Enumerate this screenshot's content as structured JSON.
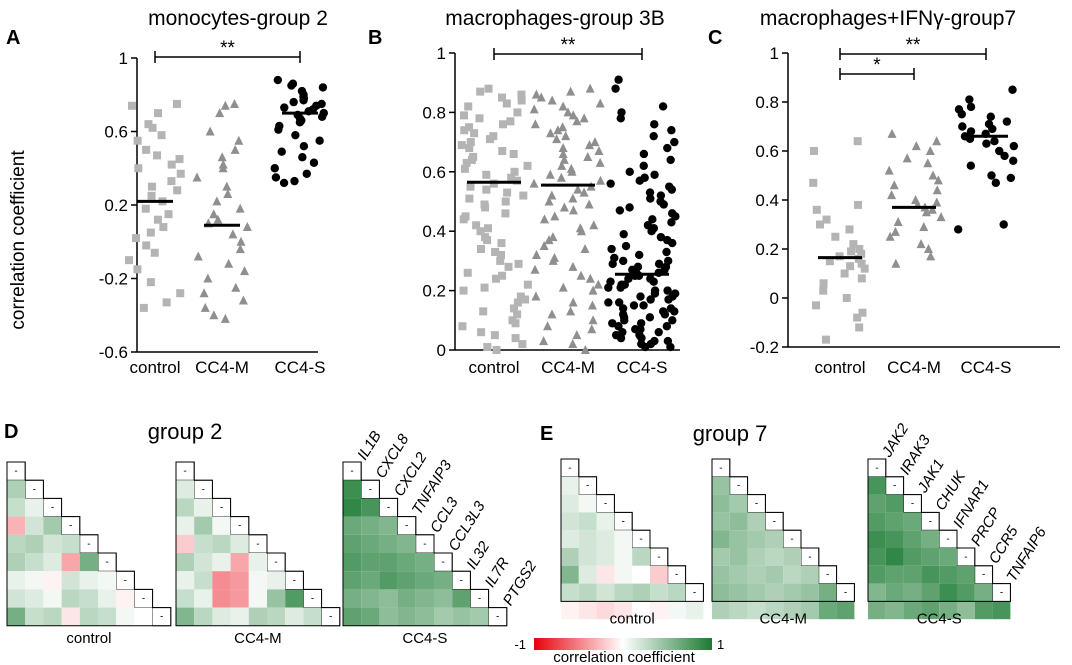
{
  "colors": {
    "control": "#b4b4b4",
    "cc4m": "#8f8f8f",
    "cc4s": "#000000",
    "pos": "#1a7a32",
    "neg": "#e8000d"
  },
  "chart_data": [
    {
      "type": "scatter",
      "panel": "A",
      "title": "monocytes-group 2",
      "xlabel": "",
      "ylabel": "correlation coefficient",
      "categories": [
        "control",
        "CC4-M",
        "CC4-S"
      ],
      "ylim": [
        -0.6,
        1
      ],
      "yticks": [
        -0.6,
        -0.2,
        0.2,
        0.6,
        1
      ],
      "ytick_labels": [
        "-0.6",
        "-0.2",
        "0.2",
        "0.6",
        "1"
      ],
      "medians": [
        0.22,
        0.09,
        0.7
      ],
      "significance": [
        {
          "from": 0,
          "to": 2,
          "label": "**"
        }
      ],
      "series": [
        {
          "name": "control",
          "marker": "square",
          "values": [
            0.75,
            0.74,
            0.7,
            0.64,
            0.62,
            0.58,
            0.55,
            0.5,
            0.47,
            0.45,
            0.42,
            0.4,
            0.37,
            0.33,
            0.3,
            0.28,
            0.25,
            0.22,
            0.18,
            0.15,
            0.12,
            0.08,
            0.05,
            0.02,
            -0.02,
            -0.06,
            -0.1,
            -0.15,
            -0.22,
            -0.28,
            -0.33,
            -0.36
          ]
        },
        {
          "name": "CC4-M",
          "marker": "triangle",
          "values": [
            0.75,
            0.74,
            0.7,
            0.6,
            0.55,
            0.5,
            0.46,
            0.42,
            0.4,
            0.35,
            0.3,
            0.26,
            0.22,
            0.18,
            0.15,
            0.12,
            0.1,
            0.08,
            0.04,
            0.0,
            -0.04,
            -0.08,
            -0.12,
            -0.16,
            -0.2,
            -0.25,
            -0.28,
            -0.32,
            -0.36,
            -0.4,
            -0.42
          ]
        },
        {
          "name": "CC4-S",
          "marker": "circle",
          "values": [
            0.88,
            0.86,
            0.85,
            0.84,
            0.82,
            0.8,
            0.79,
            0.78,
            0.77,
            0.76,
            0.75,
            0.74,
            0.73,
            0.72,
            0.71,
            0.7,
            0.69,
            0.68,
            0.67,
            0.66,
            0.65,
            0.63,
            0.61,
            0.58,
            0.55,
            0.52,
            0.49,
            0.46,
            0.43,
            0.4,
            0.37,
            0.35,
            0.33,
            0.32
          ]
        }
      ]
    },
    {
      "type": "scatter",
      "panel": "B",
      "title": "macrophages-group 3B",
      "xlabel": "",
      "ylabel": "",
      "categories": [
        "control",
        "CC4-M",
        "CC4-S"
      ],
      "ylim": [
        0,
        1
      ],
      "yticks": [
        0,
        0.2,
        0.4,
        0.6,
        0.8,
        1
      ],
      "ytick_labels": [
        "0",
        "0.2",
        "0.4",
        "0.6",
        "0.8",
        "1"
      ],
      "medians": [
        0.565,
        0.555,
        0.255
      ],
      "significance": [
        {
          "from": 0,
          "to": 2,
          "label": "**"
        }
      ],
      "series": [
        {
          "name": "control",
          "marker": "square",
          "values": [
            0.88,
            0.87,
            0.86,
            0.85,
            0.84,
            0.83,
            0.82,
            0.8,
            0.79,
            0.78,
            0.77,
            0.76,
            0.75,
            0.74,
            0.73,
            0.72,
            0.71,
            0.7,
            0.69,
            0.68,
            0.67,
            0.66,
            0.65,
            0.64,
            0.63,
            0.62,
            0.61,
            0.6,
            0.59,
            0.58,
            0.57,
            0.56,
            0.55,
            0.54,
            0.53,
            0.52,
            0.51,
            0.5,
            0.49,
            0.48,
            0.46,
            0.45,
            0.44,
            0.42,
            0.41,
            0.4,
            0.38,
            0.37,
            0.36,
            0.34,
            0.33,
            0.32,
            0.3,
            0.29,
            0.28,
            0.26,
            0.25,
            0.24,
            0.22,
            0.21,
            0.2,
            0.18,
            0.17,
            0.16,
            0.14,
            0.13,
            0.12,
            0.1,
            0.09,
            0.08,
            0.06,
            0.05,
            0.04,
            0.02,
            0.01,
            0.0
          ]
        },
        {
          "name": "CC4-M",
          "marker": "triangle",
          "values": [
            0.88,
            0.87,
            0.86,
            0.85,
            0.84,
            0.83,
            0.82,
            0.81,
            0.8,
            0.79,
            0.78,
            0.77,
            0.76,
            0.75,
            0.74,
            0.73,
            0.72,
            0.71,
            0.7,
            0.69,
            0.68,
            0.67,
            0.66,
            0.65,
            0.64,
            0.63,
            0.62,
            0.61,
            0.6,
            0.59,
            0.58,
            0.57,
            0.56,
            0.55,
            0.54,
            0.53,
            0.52,
            0.51,
            0.5,
            0.49,
            0.48,
            0.47,
            0.45,
            0.44,
            0.42,
            0.41,
            0.4,
            0.38,
            0.37,
            0.35,
            0.34,
            0.32,
            0.31,
            0.3,
            0.28,
            0.27,
            0.25,
            0.24,
            0.22,
            0.21,
            0.2,
            0.18,
            0.16,
            0.15,
            0.13,
            0.12,
            0.1,
            0.08,
            0.07,
            0.05,
            0.03,
            0.02,
            0.0
          ]
        },
        {
          "name": "CC4-S",
          "marker": "circle",
          "values": [
            0.91,
            0.88,
            0.82,
            0.8,
            0.78,
            0.76,
            0.74,
            0.72,
            0.7,
            0.68,
            0.66,
            0.64,
            0.62,
            0.6,
            0.59,
            0.58,
            0.57,
            0.56,
            0.55,
            0.54,
            0.53,
            0.52,
            0.51,
            0.5,
            0.49,
            0.48,
            0.47,
            0.46,
            0.45,
            0.44,
            0.43,
            0.42,
            0.41,
            0.4,
            0.39,
            0.38,
            0.37,
            0.36,
            0.35,
            0.34,
            0.33,
            0.32,
            0.31,
            0.3,
            0.3,
            0.29,
            0.29,
            0.28,
            0.28,
            0.27,
            0.27,
            0.26,
            0.26,
            0.25,
            0.25,
            0.24,
            0.24,
            0.23,
            0.23,
            0.22,
            0.22,
            0.21,
            0.21,
            0.2,
            0.2,
            0.19,
            0.19,
            0.18,
            0.18,
            0.17,
            0.17,
            0.16,
            0.16,
            0.15,
            0.15,
            0.14,
            0.14,
            0.13,
            0.13,
            0.12,
            0.12,
            0.11,
            0.11,
            0.1,
            0.1,
            0.09,
            0.09,
            0.08,
            0.08,
            0.07,
            0.07,
            0.06,
            0.06,
            0.05,
            0.05,
            0.04,
            0.04,
            0.03,
            0.03,
            0.02,
            0.02,
            0.01,
            0.01
          ]
        }
      ]
    },
    {
      "type": "scatter",
      "panel": "C",
      "title": "macrophages+IFNγ-group7",
      "xlabel": "",
      "ylabel": "",
      "categories": [
        "control",
        "CC4-M",
        "CC4-S"
      ],
      "ylim": [
        -0.2,
        1
      ],
      "yticks": [
        -0.2,
        0,
        0.2,
        0.4,
        0.6,
        0.8,
        1
      ],
      "ytick_labels": [
        "-0.2",
        "0",
        "0.2",
        "0.4",
        "0.6",
        "0.8",
        "1"
      ],
      "medians": [
        0.165,
        0.37,
        0.66
      ],
      "significance": [
        {
          "from": 0,
          "to": 1,
          "label": "*"
        },
        {
          "from": 0,
          "to": 2,
          "label": "**"
        }
      ],
      "series": [
        {
          "name": "control",
          "marker": "square",
          "values": [
            0.64,
            0.6,
            0.47,
            0.38,
            0.36,
            0.32,
            0.3,
            0.28,
            0.25,
            0.22,
            0.2,
            0.19,
            0.18,
            0.17,
            0.16,
            0.15,
            0.14,
            0.13,
            0.12,
            0.1,
            0.08,
            0.06,
            0.03,
            0.0,
            -0.03,
            -0.06,
            -0.08,
            -0.12,
            -0.17
          ]
        },
        {
          "name": "CC4-M",
          "marker": "triangle",
          "values": [
            0.67,
            0.64,
            0.62,
            0.6,
            0.57,
            0.55,
            0.52,
            0.5,
            0.48,
            0.46,
            0.44,
            0.42,
            0.4,
            0.39,
            0.38,
            0.37,
            0.36,
            0.35,
            0.33,
            0.31,
            0.29,
            0.27,
            0.25,
            0.22,
            0.2,
            0.17,
            0.14
          ]
        },
        {
          "name": "CC4-S",
          "marker": "circle",
          "values": [
            0.85,
            0.81,
            0.78,
            0.77,
            0.75,
            0.74,
            0.72,
            0.71,
            0.7,
            0.69,
            0.68,
            0.67,
            0.66,
            0.65,
            0.64,
            0.63,
            0.62,
            0.6,
            0.58,
            0.56,
            0.54,
            0.5,
            0.49,
            0.47,
            0.3,
            0.28
          ]
        }
      ]
    },
    {
      "type": "heatmap",
      "panel": "D",
      "title": "group 2",
      "genes": [
        "IL1B",
        "CXCL8",
        "CXCL2",
        "TNFAIP3",
        "CCL3",
        "CCL3L3",
        "IL32",
        "IL7R",
        "PTGS2"
      ],
      "diag_label": "-",
      "matrices": [
        {
          "label": "control",
          "values": [
            [
              0.35
            ],
            [
              0.25,
              0.1
            ],
            [
              -0.3,
              0.2,
              0.4
            ],
            [
              0.3,
              0.35,
              0.2,
              0.25
            ],
            [
              0.35,
              0.25,
              0.15,
              -0.35,
              0.6
            ],
            [
              0.1,
              0.05,
              -0.05,
              0.2,
              0.1,
              0.05
            ],
            [
              0.2,
              0.15,
              0.05,
              0.3,
              0.25,
              0.1,
              -0.05
            ],
            [
              0.6,
              0.25,
              0.3,
              -0.1,
              0.3,
              0.25,
              0.05,
              0.0
            ]
          ]
        },
        {
          "label": "CC4-M",
          "values": [
            [
              0.15
            ],
            [
              0.3,
              0.1
            ],
            [
              0.1,
              0.4,
              0.05
            ],
            [
              -0.2,
              0.25,
              0.3,
              0.15
            ],
            [
              0.35,
              0.2,
              0.1,
              -0.35,
              0.1
            ],
            [
              0.1,
              0.25,
              -0.45,
              -0.4,
              0.05,
              0.1
            ],
            [
              0.25,
              0.1,
              -0.45,
              -0.4,
              0.05,
              0.45,
              0.75
            ],
            [
              0.55,
              0.3,
              0.15,
              0.1,
              0.35,
              0.3,
              0.15,
              0.25
            ]
          ]
        },
        {
          "label": "CC4-S",
          "values": [
            [
              0.85
            ],
            [
              0.9,
              0.8
            ],
            [
              0.65,
              0.6,
              0.55
            ],
            [
              0.7,
              0.65,
              0.6,
              0.55
            ],
            [
              0.75,
              0.7,
              0.7,
              0.65,
              0.6
            ],
            [
              0.7,
              0.65,
              0.75,
              0.7,
              0.65,
              0.6
            ],
            [
              0.6,
              0.55,
              0.5,
              0.6,
              0.55,
              0.5,
              0.7
            ],
            [
              0.7,
              0.65,
              0.5,
              0.55,
              0.5,
              0.4,
              0.45,
              0.4
            ]
          ]
        }
      ]
    },
    {
      "type": "heatmap",
      "panel": "E",
      "title": "group 7",
      "genes": [
        "JAK2",
        "IRAK3",
        "JAK1",
        "CHUK",
        "IFNAR1",
        "PRCP",
        "CCR5",
        "TNFAIP6"
      ],
      "diag_label": "-",
      "matrices": [
        {
          "label": "control",
          "values": [
            [
              0.1
            ],
            [
              0.15,
              0.05
            ],
            [
              0.2,
              0.25,
              0.1
            ],
            [
              0.15,
              0.2,
              0.15,
              0.05
            ],
            [
              0.35,
              0.2,
              0.15,
              0.05,
              0.3
            ],
            [
              0.55,
              0.15,
              -0.1,
              0.05,
              0.0,
              -0.2
            ],
            [
              0.25,
              0.3,
              0.2,
              0.3,
              0.35,
              0.25,
              0.3
            ],
            [
              -0.05,
              -0.1,
              -0.15,
              -0.1,
              0.0,
              -0.05,
              0.05,
              0.1
            ]
          ]
        },
        {
          "label": "CC4-M",
          "values": [
            [
              0.45
            ],
            [
              0.5,
              0.4
            ],
            [
              0.45,
              0.5,
              0.35
            ],
            [
              0.55,
              0.45,
              0.4,
              0.35
            ],
            [
              0.4,
              0.45,
              0.35,
              0.3,
              0.35
            ],
            [
              0.45,
              0.4,
              0.35,
              0.4,
              0.3,
              0.35
            ],
            [
              0.5,
              0.45,
              0.4,
              0.35,
              0.4,
              0.45,
              0.6
            ],
            [
              0.35,
              0.3,
              0.25,
              0.3,
              0.35,
              0.4,
              0.65,
              0.7
            ]
          ]
        },
        {
          "label": "CC4-S",
          "values": [
            [
              0.8
            ],
            [
              0.7,
              0.75
            ],
            [
              0.75,
              0.7,
              0.65
            ],
            [
              0.85,
              0.8,
              0.7,
              0.6
            ],
            [
              0.8,
              0.9,
              0.75,
              0.7,
              0.65
            ],
            [
              0.75,
              0.7,
              0.7,
              0.8,
              0.75,
              0.7
            ],
            [
              0.55,
              0.65,
              0.6,
              0.7,
              0.85,
              0.75,
              0.6
            ],
            [
              0.6,
              0.55,
              0.65,
              0.7,
              0.6,
              0.5,
              0.75,
              0.8
            ]
          ]
        }
      ]
    },
    {
      "type": "colorbar",
      "min_label": "-1",
      "max_label": "1",
      "title": "correlation coefficient"
    }
  ]
}
